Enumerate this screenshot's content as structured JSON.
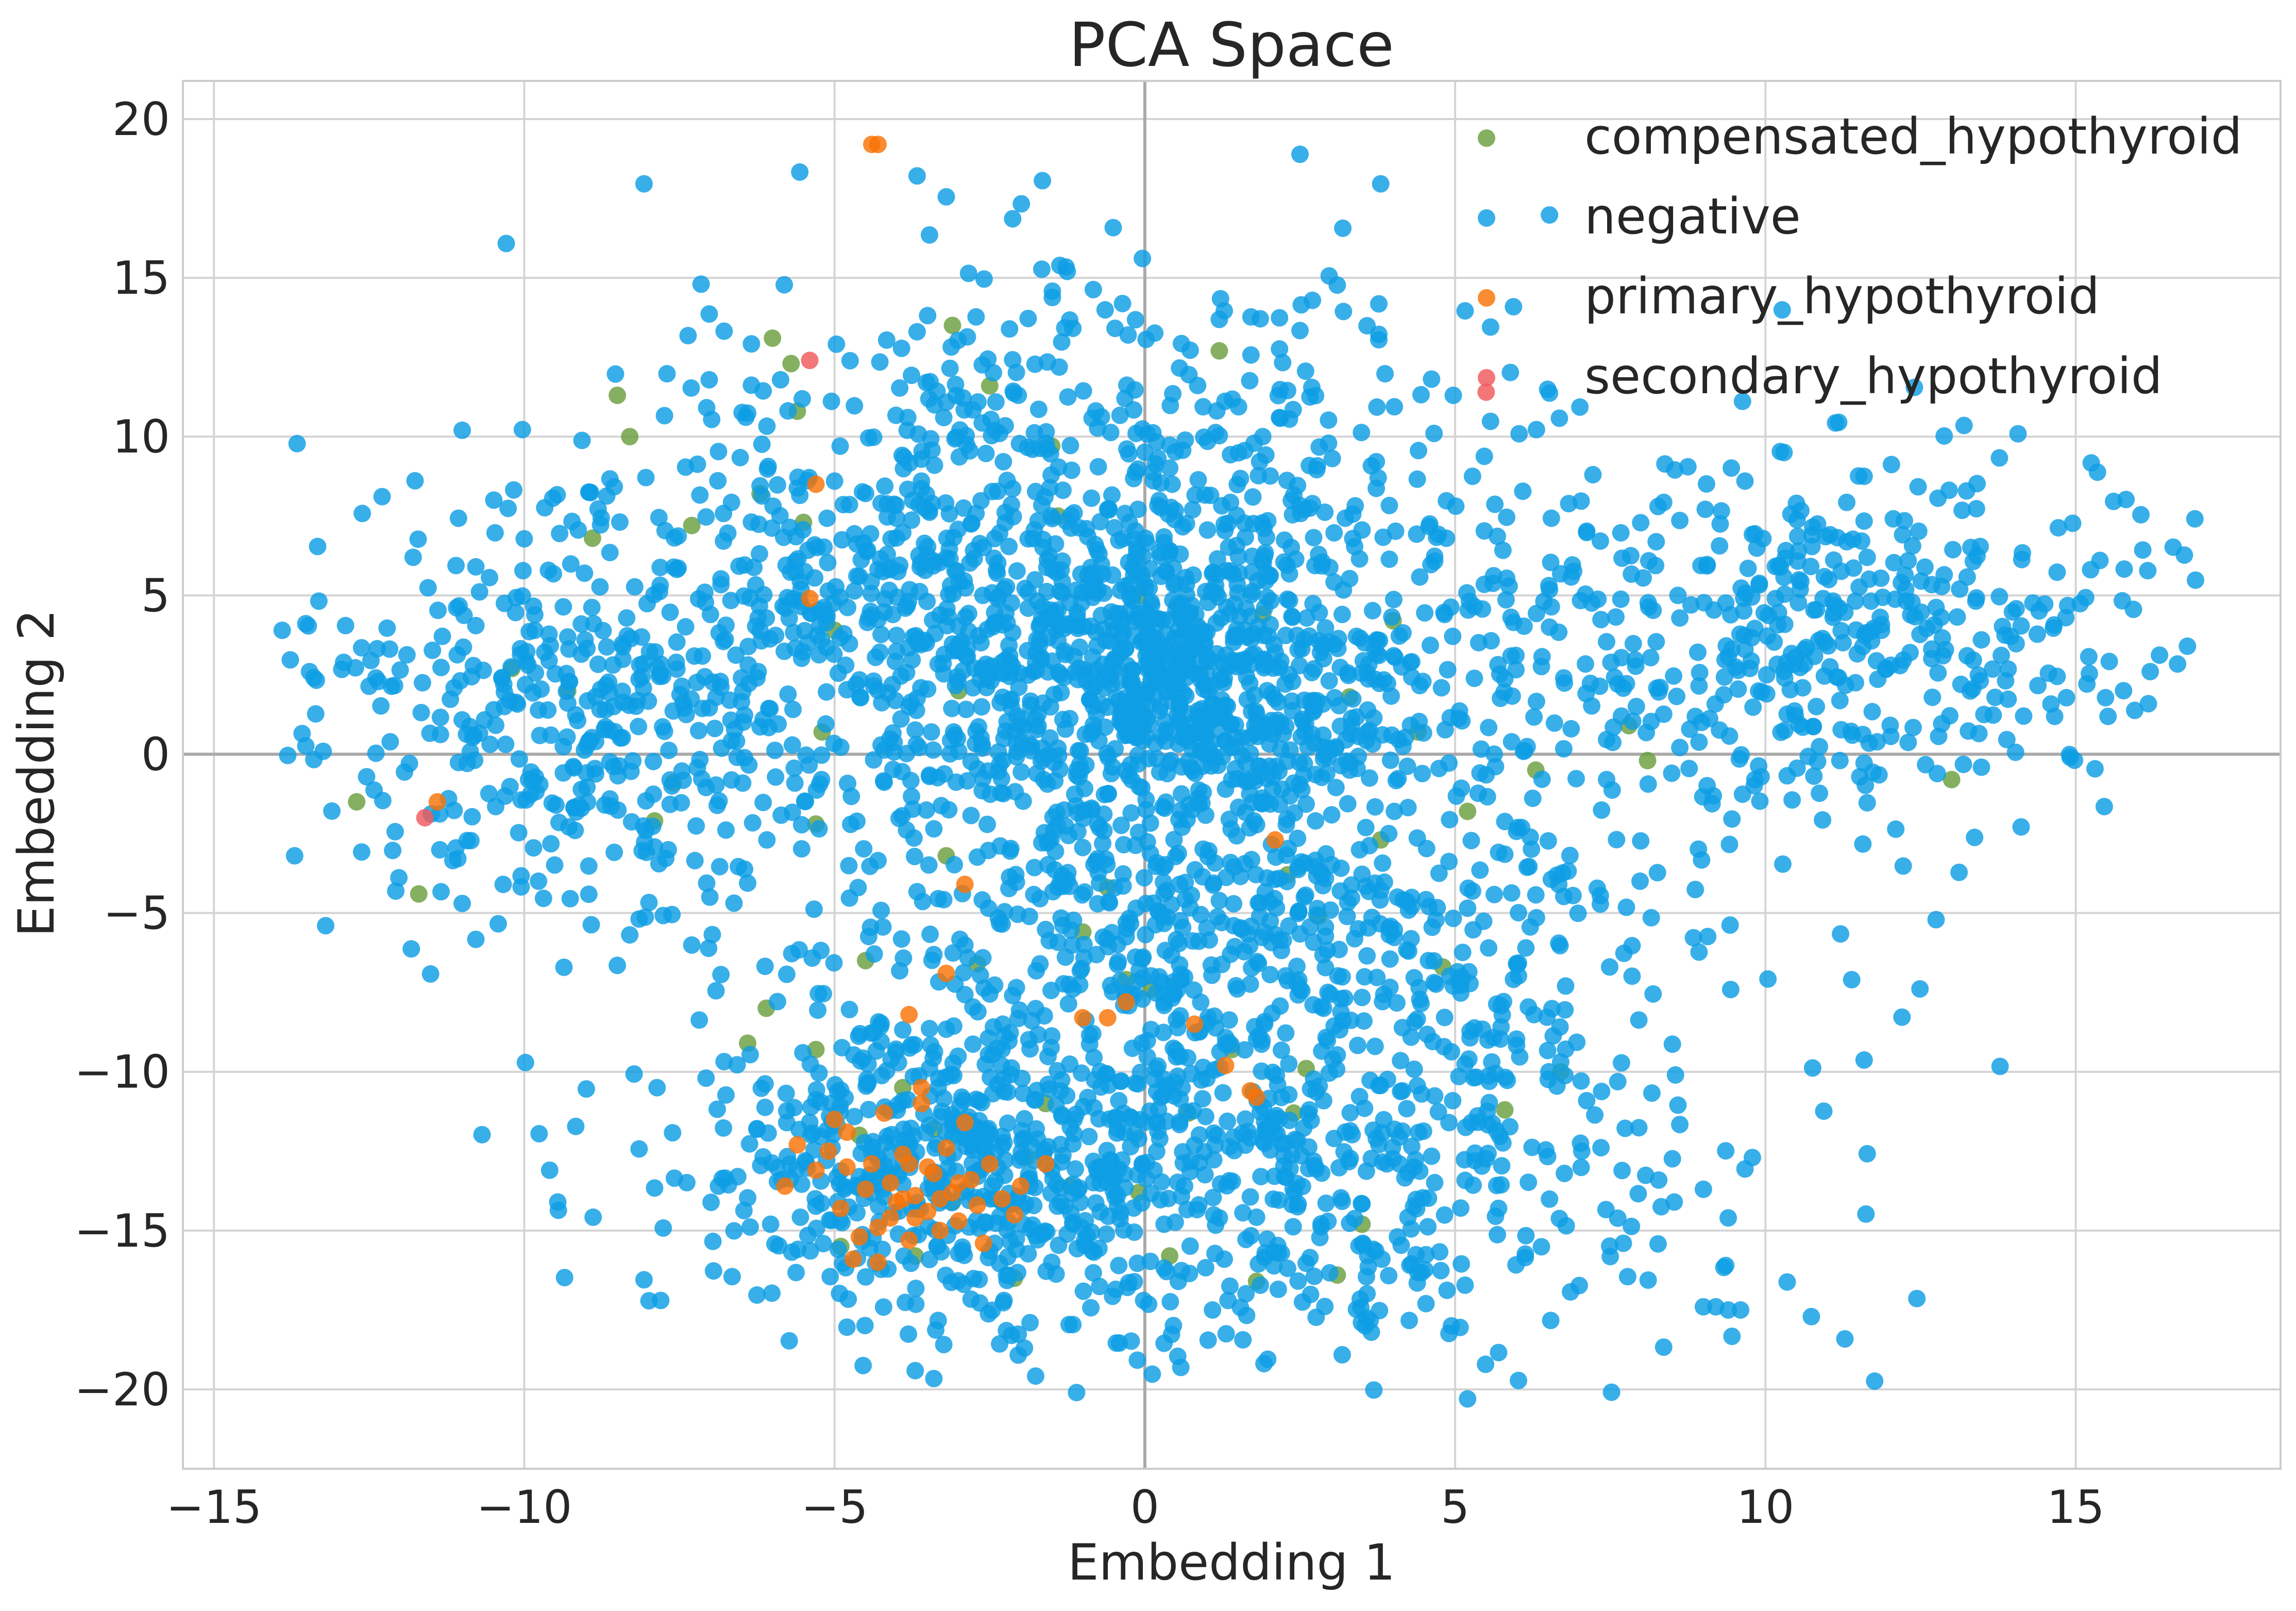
{
  "chart_data": {
    "type": "scatter",
    "title": "PCA Space",
    "xlabel": "Embedding 1",
    "ylabel": "Embedding 2",
    "xlim": [
      -15.5,
      18.3
    ],
    "ylim": [
      -22.5,
      21.2
    ],
    "xticks": [
      -15,
      -10,
      -5,
      0,
      5,
      10,
      15
    ],
    "yticks": [
      -20,
      -15,
      -10,
      -5,
      0,
      5,
      10,
      15,
      20
    ],
    "xtick_labels": [
      "−15",
      "−10",
      "−5",
      "0",
      "5",
      "10",
      "15"
    ],
    "ytick_labels": [
      "−20",
      "−15",
      "−10",
      "−5",
      "0",
      "5",
      "10",
      "15",
      "20"
    ],
    "grid": true,
    "zero_lines": true,
    "legend_position": "top-right",
    "series": [
      {
        "name": "compensated_hypothyroid",
        "color": "#6a9f3e",
        "points": [
          [
            -12.7,
            -1.5
          ],
          [
            -11.7,
            -4.4
          ],
          [
            -10.2,
            2.7
          ],
          [
            -9.3,
            2.0
          ],
          [
            -8.9,
            6.8
          ],
          [
            -8.5,
            11.3
          ],
          [
            -8.3,
            10.0
          ],
          [
            -7.3,
            7.2
          ],
          [
            -7.6,
            -0.9
          ],
          [
            -7.9,
            -2.1
          ],
          [
            -6.2,
            8.2
          ],
          [
            -6.0,
            13.1
          ],
          [
            -5.7,
            12.3
          ],
          [
            -5.6,
            10.8
          ],
          [
            -5.5,
            7.3
          ],
          [
            -5.3,
            -2.2
          ],
          [
            -5.0,
            3.9
          ],
          [
            -5.2,
            0.7
          ],
          [
            -3.9,
            -10.5
          ],
          [
            -3.1,
            13.5
          ],
          [
            -3.0,
            2.0
          ],
          [
            -3.2,
            -3.2
          ],
          [
            -2.7,
            -6.6
          ],
          [
            -2.5,
            11.6
          ],
          [
            -2.1,
            -16.5
          ],
          [
            -1.9,
            -12.7
          ],
          [
            -1.6,
            -11.0
          ],
          [
            -1.5,
            9.7
          ],
          [
            -1.4,
            7.5
          ],
          [
            -1.2,
            -13.6
          ],
          [
            -1.0,
            -5.6
          ],
          [
            -0.6,
            -4.2
          ],
          [
            -0.3,
            -7.1
          ],
          [
            -0.1,
            5.0
          ],
          [
            -0.1,
            -13.8
          ],
          [
            0.1,
            -7.4
          ],
          [
            0.4,
            -15.8
          ],
          [
            0.7,
            -11.3
          ],
          [
            1.2,
            12.7
          ],
          [
            1.4,
            -9.3
          ],
          [
            1.8,
            -16.6
          ],
          [
            1.9,
            4.4
          ],
          [
            2.3,
            -3.8
          ],
          [
            2.4,
            -11.3
          ],
          [
            2.6,
            -9.9
          ],
          [
            2.8,
            -5.1
          ],
          [
            3.1,
            -16.4
          ],
          [
            3.3,
            1.8
          ],
          [
            3.5,
            -14.8
          ],
          [
            3.8,
            -2.7
          ],
          [
            4.0,
            4.2
          ],
          [
            4.4,
            0.7
          ],
          [
            4.8,
            -6.7
          ],
          [
            5.2,
            -1.8
          ],
          [
            5.8,
            -11.2
          ],
          [
            6.3,
            -0.5
          ],
          [
            6.7,
            -10.0
          ],
          [
            7.8,
            0.9
          ],
          [
            8.1,
            -0.2
          ],
          [
            13.0,
            -0.8
          ],
          [
            -4.9,
            -15.5
          ],
          [
            -4.6,
            -12.0
          ],
          [
            -4.3,
            -13.3
          ],
          [
            -3.7,
            -15.8
          ],
          [
            -3.4,
            -11.8
          ],
          [
            -3.1,
            -14.1
          ],
          [
            -6.4,
            -9.1
          ],
          [
            -6.1,
            -8.0
          ],
          [
            -5.3,
            -9.3
          ],
          [
            -4.5,
            -6.5
          ]
        ]
      },
      {
        "name": "negative",
        "color": "#0d9ee4",
        "cluster_note": "see script-generated points",
        "points": []
      },
      {
        "name": "primary_hypothyroid",
        "color": "#f97306",
        "points": [
          [
            -4.3,
            19.2
          ],
          [
            -4.4,
            19.2
          ],
          [
            -5.3,
            8.5
          ],
          [
            -5.4,
            4.9
          ],
          [
            -11.4,
            -1.5
          ],
          [
            -2.9,
            -4.1
          ],
          [
            -3.2,
            -6.9
          ],
          [
            -3.8,
            -8.2
          ],
          [
            -1.0,
            -8.3
          ],
          [
            -0.6,
            -8.3
          ],
          [
            -0.3,
            -7.8
          ],
          [
            0.8,
            -8.5
          ],
          [
            1.3,
            -9.8
          ],
          [
            1.7,
            -10.6
          ],
          [
            1.8,
            -10.8
          ],
          [
            2.1,
            -2.7
          ],
          [
            -5.3,
            -13.1
          ],
          [
            -5.1,
            -12.5
          ],
          [
            -4.9,
            -14.3
          ],
          [
            -4.8,
            -11.9
          ],
          [
            -4.7,
            -15.9
          ],
          [
            -4.5,
            -13.7
          ],
          [
            -4.4,
            -12.9
          ],
          [
            -4.3,
            -14.9
          ],
          [
            -4.2,
            -11.3
          ],
          [
            -4.1,
            -13.5
          ],
          [
            -4.0,
            -14.1
          ],
          [
            -3.9,
            -12.6
          ],
          [
            -3.8,
            -15.3
          ],
          [
            -3.7,
            -13.9
          ],
          [
            -3.6,
            -11.0
          ],
          [
            -3.5,
            -14.4
          ],
          [
            -3.4,
            -13.2
          ],
          [
            -3.3,
            -15.0
          ],
          [
            -3.2,
            -12.4
          ],
          [
            -3.1,
            -13.8
          ],
          [
            -3.0,
            -14.7
          ],
          [
            -2.9,
            -11.6
          ],
          [
            -2.8,
            -13.4
          ],
          [
            -2.7,
            -14.2
          ],
          [
            -2.5,
            -12.9
          ],
          [
            -2.3,
            -14.0
          ],
          [
            -2.0,
            -13.6
          ],
          [
            -1.6,
            -12.9
          ],
          [
            -5.6,
            -12.3
          ],
          [
            -5.8,
            -13.6
          ],
          [
            -3.6,
            -10.5
          ],
          [
            -3.9,
            -14.0
          ],
          [
            -4.6,
            -15.2
          ],
          [
            -3.5,
            -13.0
          ],
          [
            -3.0,
            -13.5
          ],
          [
            -3.8,
            -12.9
          ],
          [
            -4.1,
            -14.6
          ],
          [
            -4.8,
            -13.0
          ],
          [
            -2.6,
            -15.4
          ],
          [
            -3.3,
            -14.0
          ],
          [
            -5.0,
            -11.5
          ],
          [
            -4.3,
            -16.0
          ],
          [
            -2.1,
            -14.5
          ],
          [
            -3.7,
            -14.6
          ]
        ]
      },
      {
        "name": "secondary_hypothyroid",
        "color": "#f0595b",
        "points": [
          [
            -5.4,
            12.4
          ],
          [
            5.5,
            11.4
          ],
          [
            -11.6,
            -2.0
          ]
        ]
      }
    ]
  }
}
